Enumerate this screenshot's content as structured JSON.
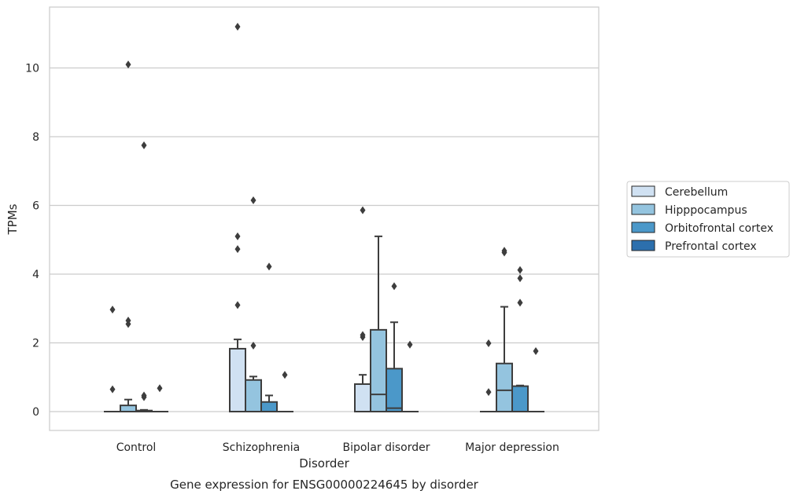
{
  "chart_data": {
    "type": "box",
    "xlabel": "Disorder",
    "ylabel": "TPMs",
    "caption": "Gene expression for ENSG00000224645 by disorder",
    "categories": [
      "Control",
      "Schizophrenia",
      "Bipolar disorder",
      "Major depression"
    ],
    "ylim": [
      -0.55,
      11.5
    ],
    "yticks": [
      0,
      2,
      4,
      6,
      8,
      10
    ],
    "grid": "horizontal",
    "legend_position": "right",
    "series": [
      {
        "name": "Cerebellum",
        "color": "#d0e1f2",
        "boxes": [
          {
            "whislo": 0,
            "q1": 0,
            "med": 0,
            "q3": 0,
            "whishi": 0,
            "fliers": [
              0.65,
              2.97
            ]
          },
          {
            "whislo": 0,
            "q1": 0,
            "med": 0,
            "q3": 1.83,
            "whishi": 2.1,
            "fliers": [
              3.1,
              4.73,
              5.1,
              11.2
            ]
          },
          {
            "whislo": 0,
            "q1": 0,
            "med": 0,
            "q3": 0.8,
            "whishi": 1.07,
            "fliers": [
              2.17,
              2.23,
              5.86
            ]
          },
          {
            "whislo": 0,
            "q1": 0,
            "med": 0,
            "q3": 0,
            "whishi": 0,
            "fliers": [
              0.57,
              1.99
            ]
          }
        ]
      },
      {
        "name": "Hipppocampus",
        "color": "#94c4df",
        "boxes": [
          {
            "whislo": 0,
            "q1": 0,
            "med": 0,
            "q3": 0.18,
            "whishi": 0.35,
            "fliers": [
              2.55,
              2.65,
              10.1
            ]
          },
          {
            "whislo": 0,
            "q1": 0,
            "med": 0,
            "q3": 0.92,
            "whishi": 1.02,
            "fliers": [
              1.92,
              6.15
            ]
          },
          {
            "whislo": 0,
            "q1": 0,
            "med": 0.5,
            "q3": 2.38,
            "whishi": 5.1,
            "fliers": []
          },
          {
            "whislo": 0,
            "q1": 0,
            "med": 0.62,
            "q3": 1.4,
            "whishi": 3.05,
            "fliers": [
              4.63,
              4.68
            ]
          }
        ]
      },
      {
        "name": "Orbitofrontal cortex",
        "color": "#4b98c9",
        "boxes": [
          {
            "whislo": 0,
            "q1": 0,
            "med": 0,
            "q3": 0.03,
            "whishi": 0.05,
            "fliers": [
              0.42,
              0.47,
              7.75
            ]
          },
          {
            "whislo": 0,
            "q1": 0,
            "med": 0,
            "q3": 0.28,
            "whishi": 0.47,
            "fliers": [
              4.22
            ]
          },
          {
            "whislo": 0,
            "q1": 0,
            "med": 0.1,
            "q3": 1.25,
            "whishi": 2.6,
            "fliers": [
              3.65
            ]
          },
          {
            "whislo": 0,
            "q1": 0,
            "med": 0,
            "q3": 0.74,
            "whishi": 0.76,
            "fliers": [
              3.17,
              3.88,
              4.12
            ]
          }
        ]
      },
      {
        "name": "Prefrontal cortex",
        "color": "#2c6fad",
        "boxes": [
          {
            "whislo": 0,
            "q1": 0,
            "med": 0,
            "q3": 0,
            "whishi": 0,
            "fliers": [
              0.68
            ]
          },
          {
            "whislo": 0,
            "q1": 0,
            "med": 0,
            "q3": 0,
            "whishi": 0,
            "fliers": [
              1.07
            ]
          },
          {
            "whislo": 0,
            "q1": 0,
            "med": 0,
            "q3": 0,
            "whishi": 0,
            "fliers": [
              1.95
            ]
          },
          {
            "whislo": 0,
            "q1": 0,
            "med": 0,
            "q3": 0,
            "whishi": 0,
            "fliers": [
              1.76
            ]
          }
        ]
      }
    ]
  }
}
